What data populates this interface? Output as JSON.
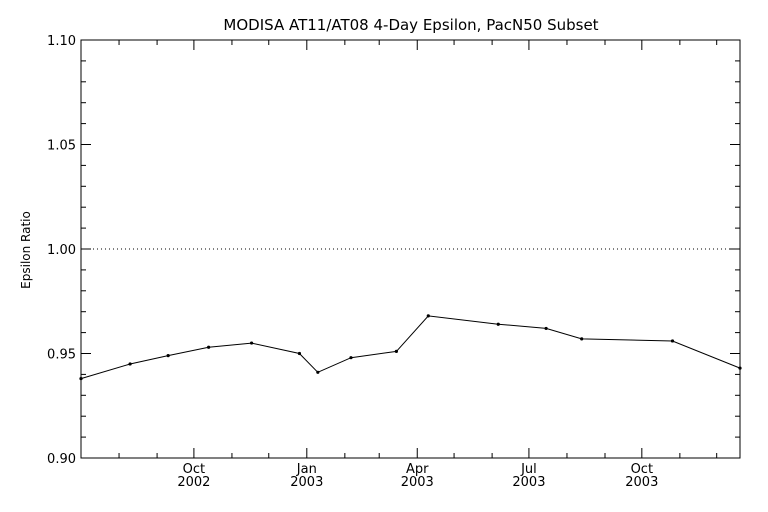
{
  "chart_data": {
    "type": "line",
    "title": "MODISA AT11/AT08 4-Day Epsilon, PacN50 Subset",
    "xlabel": "",
    "ylabel": "Epsilon Ratio",
    "x_axis_type": "date",
    "xlim": [
      "2002-07-01",
      "2003-12-20"
    ],
    "ylim": [
      0.9,
      1.1
    ],
    "y_ticks": [
      "0.90",
      "0.95",
      "1.00",
      "1.05",
      "1.10"
    ],
    "x_ticks": [
      {
        "date": "2002-10-01",
        "month": "Oct",
        "year": "2002"
      },
      {
        "date": "2003-01-01",
        "month": "Jan",
        "year": "2003"
      },
      {
        "date": "2003-04-01",
        "month": "Apr",
        "year": "2003"
      },
      {
        "date": "2003-07-01",
        "month": "Jul",
        "year": "2003"
      },
      {
        "date": "2003-10-01",
        "month": "Oct",
        "year": "2003"
      }
    ],
    "reference_line": {
      "y": 1.0,
      "style": "dotted"
    },
    "grid": false,
    "series": [
      {
        "values": [
          {
            "x": "2002-07-01",
            "y": 0.938
          },
          {
            "x": "2002-08-10",
            "y": 0.945
          },
          {
            "x": "2002-09-10",
            "y": 0.949
          },
          {
            "x": "2002-10-13",
            "y": 0.953
          },
          {
            "x": "2002-11-17",
            "y": 0.955
          },
          {
            "x": "2002-12-26",
            "y": 0.95
          },
          {
            "x": "2003-01-10",
            "y": 0.941
          },
          {
            "x": "2003-02-06",
            "y": 0.948
          },
          {
            "x": "2003-03-15",
            "y": 0.951
          },
          {
            "x": "2003-04-10",
            "y": 0.968
          },
          {
            "x": "2003-06-06",
            "y": 0.964
          },
          {
            "x": "2003-07-15",
            "y": 0.962
          },
          {
            "x": "2003-08-13",
            "y": 0.957
          },
          {
            "x": "2003-10-26",
            "y": 0.956
          },
          {
            "x": "2003-12-20",
            "y": 0.943
          }
        ]
      }
    ]
  }
}
